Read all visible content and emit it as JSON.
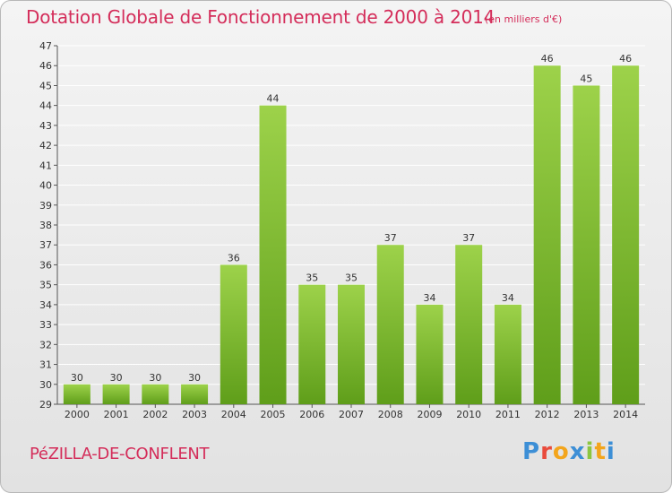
{
  "title": "Dotation Globale de Fonctionnement de 2000 à 2014",
  "unit_note": "(en milliers d'€)",
  "commune": "PéZILLA-DE-CONFLENT",
  "logo": {
    "letters": [
      "P",
      "r",
      "o",
      "x",
      "i",
      "t",
      "i"
    ],
    "colors": [
      "#3d8fd6",
      "#e94b3c",
      "#f3a51c",
      "#3d8fd6",
      "#8cc63f",
      "#f3a51c",
      "#3d8fd6"
    ]
  },
  "colors": {
    "accent": "#d42d5a",
    "bar_light": "#9dd24a",
    "bar_dark": "#5f9e1a",
    "grid": "#ffffff",
    "axis": "#555555"
  },
  "chart_data": {
    "type": "bar",
    "title": "Dotation Globale de Fonctionnement de 2000 à 2014",
    "xlabel": "",
    "ylabel": "(en milliers d'€)",
    "categories": [
      "2000",
      "2001",
      "2002",
      "2003",
      "2004",
      "2005",
      "2006",
      "2007",
      "2008",
      "2009",
      "2010",
      "2011",
      "2012",
      "2013",
      "2014"
    ],
    "values": [
      30,
      30,
      30,
      30,
      36,
      44,
      35,
      35,
      37,
      34,
      37,
      34,
      46,
      45,
      46
    ],
    "ylim": [
      29,
      47
    ],
    "yticks": [
      29,
      30,
      31,
      32,
      33,
      34,
      35,
      36,
      37,
      38,
      39,
      40,
      41,
      42,
      43,
      44,
      45,
      46,
      47
    ],
    "grid": true
  }
}
